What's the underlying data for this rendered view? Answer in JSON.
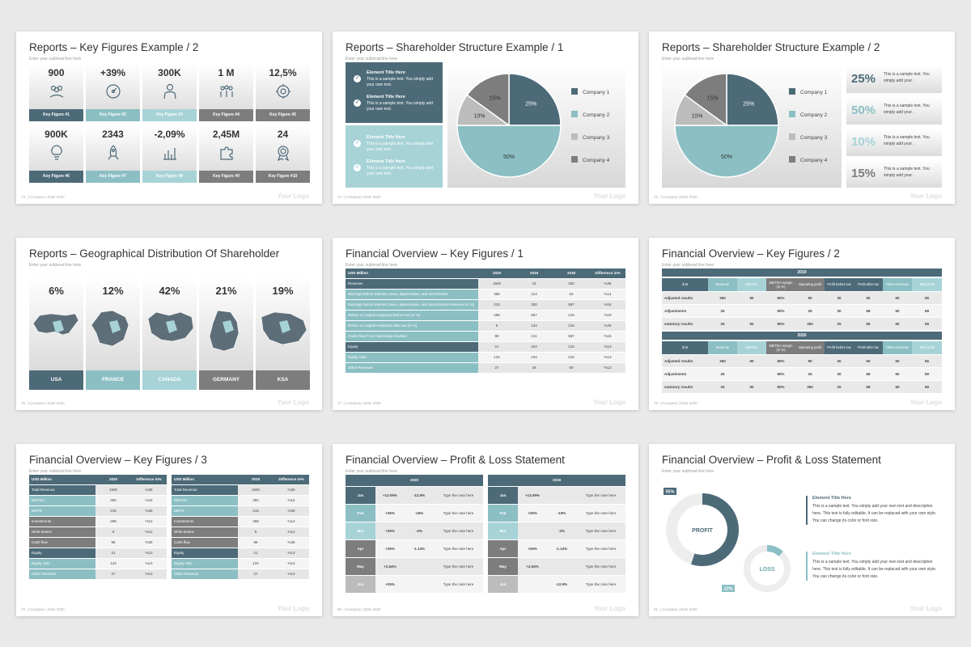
{
  "footer": {
    "company": "| Company | Date 2020",
    "logo": "Your Logo"
  },
  "subhead": "Enter your subhead line here",
  "colors": {
    "dark": "#4d6a78",
    "teal": "#8bbfc4",
    "light": "#a7d3d7",
    "gray": "#7d7d7d",
    "lightgray": "#bcbcbc"
  },
  "slides": [
    {
      "title": "Reports – Key Figures Example / 2",
      "num": "73",
      "figures": [
        {
          "value": "900",
          "label": "Key Figure #1",
          "icon": "people-hand-icon"
        },
        {
          "value": "+39%",
          "label": "Key Figure #2",
          "icon": "speedometer-icon"
        },
        {
          "value": "300K",
          "label": "Key Figure #3",
          "icon": "person-icon"
        },
        {
          "value": "1 M",
          "label": "Key Figure #4",
          "icon": "team-icon"
        },
        {
          "value": "12,5%",
          "label": "Key Figure #5",
          "icon": "gear-head-icon"
        },
        {
          "value": "900K",
          "label": "Key Figure #6",
          "icon": "lightbulb-icon"
        },
        {
          "value": "2343",
          "label": "Key Figure #7",
          "icon": "rocket-icon"
        },
        {
          "value": "-2,09%",
          "label": "Key Figure #8",
          "icon": "bar-chart-icon"
        },
        {
          "value": "2,45M",
          "label": "Key Figure #9",
          "icon": "puzzle-icon"
        },
        {
          "value": "24",
          "label": "Key Figure #10",
          "icon": "award-icon"
        }
      ]
    },
    {
      "title": "Reports – Shareholder Structure Example / 1",
      "num": "74",
      "elements": [
        {
          "title": "Element Title Here",
          "text": "This is a sample text. You simply add your own text."
        },
        {
          "title": "Element Title Here",
          "text": "This is a sample text. You simply add your own text."
        },
        {
          "title": "Element Title Here",
          "text": "This is a sample text. You simply add your own text."
        },
        {
          "title": "Element Title Here",
          "text": "This is a sample text. You simply add your own text."
        }
      ],
      "legend": [
        "Company 1",
        "Company 2",
        "Company 3",
        "Company 4"
      ]
    },
    {
      "title": "Reports – Shareholder Structure Example / 2",
      "num": "75",
      "legend": [
        "Company 1",
        "Company 2",
        "Company 3",
        "Company 4"
      ],
      "stats": [
        {
          "value": "25%",
          "text": "This is a sample text. You simply add your ."
        },
        {
          "value": "50%",
          "text": "This is a sample text. You simply add your ."
        },
        {
          "value": "10%",
          "text": "This is a sample text. You simply add your ."
        },
        {
          "value": "15%",
          "text": "This is a sample text. You simply add your ."
        }
      ]
    },
    {
      "title": "Reports – Geographical Distribution Of Shareholder",
      "num": "76",
      "countries": [
        {
          "value": "6%",
          "label": "USA"
        },
        {
          "value": "12%",
          "label": "FRANCE"
        },
        {
          "value": "42%",
          "label": "CANADA"
        },
        {
          "value": "21%",
          "label": "GERMANY"
        },
        {
          "value": "19%",
          "label": "KSA"
        }
      ]
    },
    {
      "title": "Financial Overview – Key Figures / 1",
      "num": "77",
      "header": [
        "USD Million",
        "2020",
        "2019",
        "2018",
        "Difference in%"
      ],
      "rows": [
        [
          "Revenue",
          "1500",
          "43",
          "250",
          "%35"
        ],
        [
          "Earnings before interest, taxes, depreciation, and amortization",
          "350",
          "213",
          "53",
          "%14"
        ],
        [
          "Earnings before interest, taxes, depreciation, and amortization Revenue (in %)",
          "215",
          "250",
          "587",
          "%16"
        ],
        [
          "Return on capital employed before tax (in %)",
          "288",
          "587",
          "215",
          "%19"
        ],
        [
          "Return on capital employed after tax (in %)",
          "5",
          "134",
          "215",
          "%25"
        ],
        [
          "Cash Flow From Operating Activities",
          "98",
          "211",
          "587",
          "%16"
        ],
        [
          "Equity",
          "21",
          "324",
          "215",
          "%13"
        ],
        [
          "Equity ratio",
          "134",
          "234",
          "215",
          "%13"
        ],
        [
          "Other Revenue",
          "27",
          "28",
          "69",
          "%13"
        ]
      ]
    },
    {
      "title": "Financial Overview – Key Figures / 2",
      "num": "78",
      "blocks": [
        {
          "year": "2019"
        },
        {
          "year": "2020"
        }
      ],
      "header": [
        "$ M",
        "Revenue",
        "EBITDA",
        "EBITDA margin (in %)",
        "Operating profit",
        "Profit before tax",
        "Profit after tax",
        "Other Revenue",
        "Total profit"
      ],
      "rows": [
        [
          "Adjusted results",
          "350",
          "90",
          "80%",
          "90",
          "30",
          "50",
          "60",
          "65"
        ],
        [
          "Adjustments",
          "25",
          "",
          "80%",
          "25",
          "30",
          "69",
          "60",
          "69"
        ],
        [
          "statutory results",
          "25",
          "90",
          "80%",
          "350",
          "25",
          "69",
          "60",
          "69"
        ]
      ]
    },
    {
      "title": "Financial Overview – Key Figures / 3",
      "num": "79",
      "left_header": [
        "USD Million",
        "2020",
        "Difference in%"
      ],
      "left_rows": [
        [
          "Total Revenue",
          "1500",
          "%35"
        ],
        [
          "EBITDA",
          "350",
          "%16"
        ],
        [
          "EBITE",
          "215",
          "%35"
        ],
        [
          "Investments",
          "288",
          "%12"
        ],
        [
          "Write-downs",
          "5",
          "%12"
        ],
        [
          "Cash flow",
          "98",
          "%35"
        ],
        [
          "Equity",
          "21",
          "%13"
        ],
        [
          "Equity ratio",
          "134",
          "%13"
        ],
        [
          "Other Revenue",
          "27",
          "%13"
        ]
      ],
      "right_header": [
        "USD Million",
        "2019",
        "Difference in%"
      ],
      "right_rows": [
        [
          "Total Revenue",
          "1500",
          "%35"
        ],
        [
          "EBITDA",
          "350",
          "%16"
        ],
        [
          "EBITE",
          "215",
          "%35"
        ],
        [
          "Investments",
          "288",
          "%12"
        ],
        [
          "Write-downs",
          "5",
          "%12"
        ],
        [
          "Cash flow",
          "98",
          "%35"
        ],
        [
          "Equity",
          "21",
          "%13"
        ],
        [
          "Equity ratio",
          "134",
          "%13"
        ],
        [
          "Other Revenue",
          "27",
          "%13"
        ]
      ]
    },
    {
      "title": "Financial Overview – Profit & Loss Statement",
      "num": "80",
      "left_year": "2020",
      "right_year": "2019",
      "left_rows": [
        [
          "Jan",
          "+13.09%",
          "-12.9%",
          "Type the note here"
        ],
        [
          "Feb",
          "+25%",
          "-15%",
          "Type the note here"
        ],
        [
          "Mar",
          "+25%",
          "-2%",
          "Type the note here"
        ],
        [
          "Apr",
          "+25%",
          "-1.13%",
          "Type the note here"
        ],
        [
          "May",
          "+2,54%",
          "",
          "Type the note here"
        ],
        [
          "Jun",
          "+25%",
          "",
          "Type the note here"
        ]
      ],
      "right_rows": [
        [
          "Jan",
          "+13.09%",
          "",
          "Type the note here"
        ],
        [
          "Feb",
          "+25%",
          "-15%",
          "Type the note here"
        ],
        [
          "Mar",
          "",
          "-2%",
          "Type the note here"
        ],
        [
          "Apr",
          "+25%",
          "-1.13%",
          "Type the note here"
        ],
        [
          "May",
          "+2,54%",
          "",
          "Type the note here"
        ],
        [
          "Jun",
          "",
          "-12.9%",
          "Type the note here"
        ]
      ]
    },
    {
      "title": "Financial Overview – Profit & Loss Statement",
      "num": "81",
      "profit_label": "PROFIT",
      "profit_pct": "55%",
      "profit_value": 55,
      "loss_label": "LOSS",
      "loss_pct": "12%",
      "loss_value": 12,
      "elements": [
        {
          "title": "Element Title Here",
          "text": "This is a sample text. You simply add your own text and description here. This text is fully editable. It can be replaced with your own style. You can change its color or font size."
        },
        {
          "title": "Element Title Here",
          "text": "This is a sample text. You simply add your own text and description here. This text is fully editable. It can be replaced with your own style. You can change its color or font size."
        }
      ]
    }
  ],
  "chart_data": [
    {
      "type": "pie",
      "categories": [
        "Company 1",
        "Company 2",
        "Company 3",
        "Company 4"
      ],
      "values": [
        25,
        50,
        10,
        15
      ]
    },
    {
      "type": "pie",
      "categories": [
        "Company 1",
        "Company 2",
        "Company 3",
        "Company 4"
      ],
      "values": [
        25,
        50,
        10,
        15
      ]
    }
  ]
}
